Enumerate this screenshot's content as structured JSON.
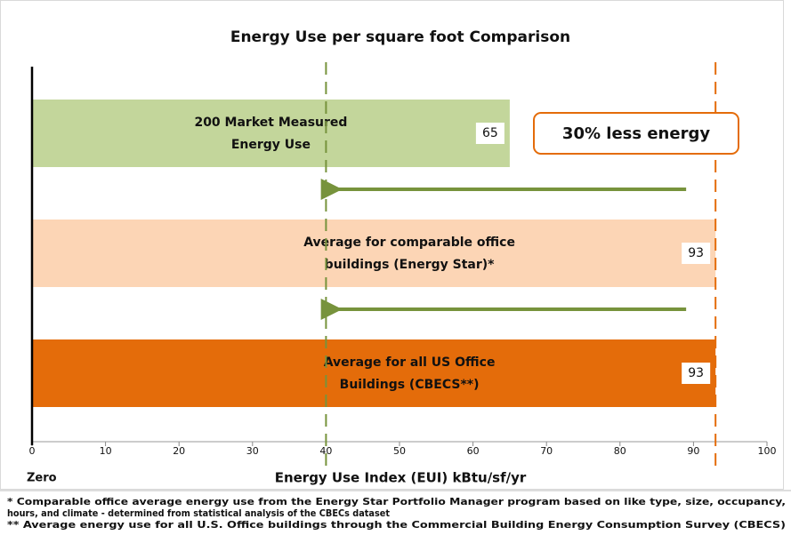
{
  "chart_data": {
    "type": "barh",
    "title": "Energy Use per square foot Comparison",
    "categories": [
      [
        "200 Market Measured",
        "Energy Use"
      ],
      [
        "Average for comparable office",
        "buildings (Energy Star)*"
      ],
      [
        "Average for all US Office",
        "Buildings (CBECS**)"
      ]
    ],
    "values": [
      65,
      93,
      93
    ],
    "colors": [
      "#c3d69b",
      "#fcd5b5",
      "#e46c0a"
    ],
    "xlim": [
      0,
      100
    ],
    "xticks": [
      0,
      10,
      20,
      30,
      40,
      50,
      60,
      70,
      80,
      90,
      100
    ],
    "x_zero_label": "Zero",
    "xlabel": "Energy Use Index (EUI) kBtu/sf/yr",
    "reference_lines": [
      {
        "value": 40,
        "color": "#77933c"
      },
      {
        "value": 93,
        "color": "#e46c0a"
      }
    ],
    "arrows": [
      {
        "from": 89,
        "to": 41,
        "color": "#77933c"
      },
      {
        "from": 89,
        "to": 41,
        "color": "#77933c"
      }
    ],
    "annotation": "30% less energy",
    "footnotes": [
      "* Comparable office average energy use from the Energy Star Portfolio Manager program based on like type, size, occupancy,",
      "hours, and climate - determined from statistical analysis of the CBECs dataset",
      "** Average energy use for all U.S. Office buildings through the Commercial Building Energy Consumption Survey (CBECS)"
    ]
  }
}
